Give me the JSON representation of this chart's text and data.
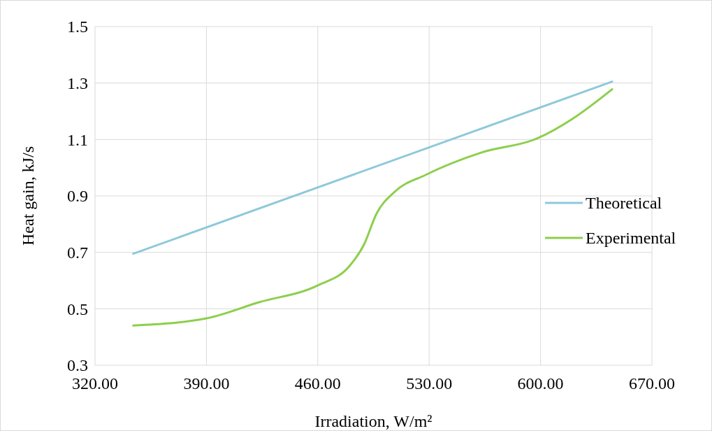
{
  "chart_data": {
    "type": "line",
    "xlabel": "Irradiation, W/m²",
    "ylabel": "Heat gain, kJ/s",
    "xlim": [
      320,
      670
    ],
    "ylim": [
      0.3,
      1.5
    ],
    "xticks": [
      {
        "value": 320,
        "label": "320.00"
      },
      {
        "value": 390,
        "label": "390.00"
      },
      {
        "value": 460,
        "label": "460.00"
      },
      {
        "value": 530,
        "label": "530.00"
      },
      {
        "value": 600,
        "label": "600.00"
      },
      {
        "value": 670,
        "label": "670.00"
      }
    ],
    "yticks": [
      0.3,
      0.5,
      0.7,
      0.9,
      1.1,
      1.3,
      1.5
    ],
    "grid": true,
    "legend": "right",
    "marker": "none",
    "line_style": "solid",
    "series": [
      {
        "name": "Theoretical",
        "color": "#8ec9da",
        "x": [
          344,
          645
        ],
        "values": [
          0.695,
          1.305
        ]
      },
      {
        "name": "Experimental",
        "color": "#8ccf4c",
        "x": [
          344,
          390,
          423,
          460,
          480,
          489,
          497,
          508,
          528,
          563,
          598,
          620,
          645
        ],
        "values": [
          0.441,
          0.466,
          0.523,
          0.583,
          0.652,
          0.727,
          0.838,
          0.913,
          0.975,
          1.054,
          1.104,
          1.173,
          1.278
        ]
      }
    ]
  }
}
